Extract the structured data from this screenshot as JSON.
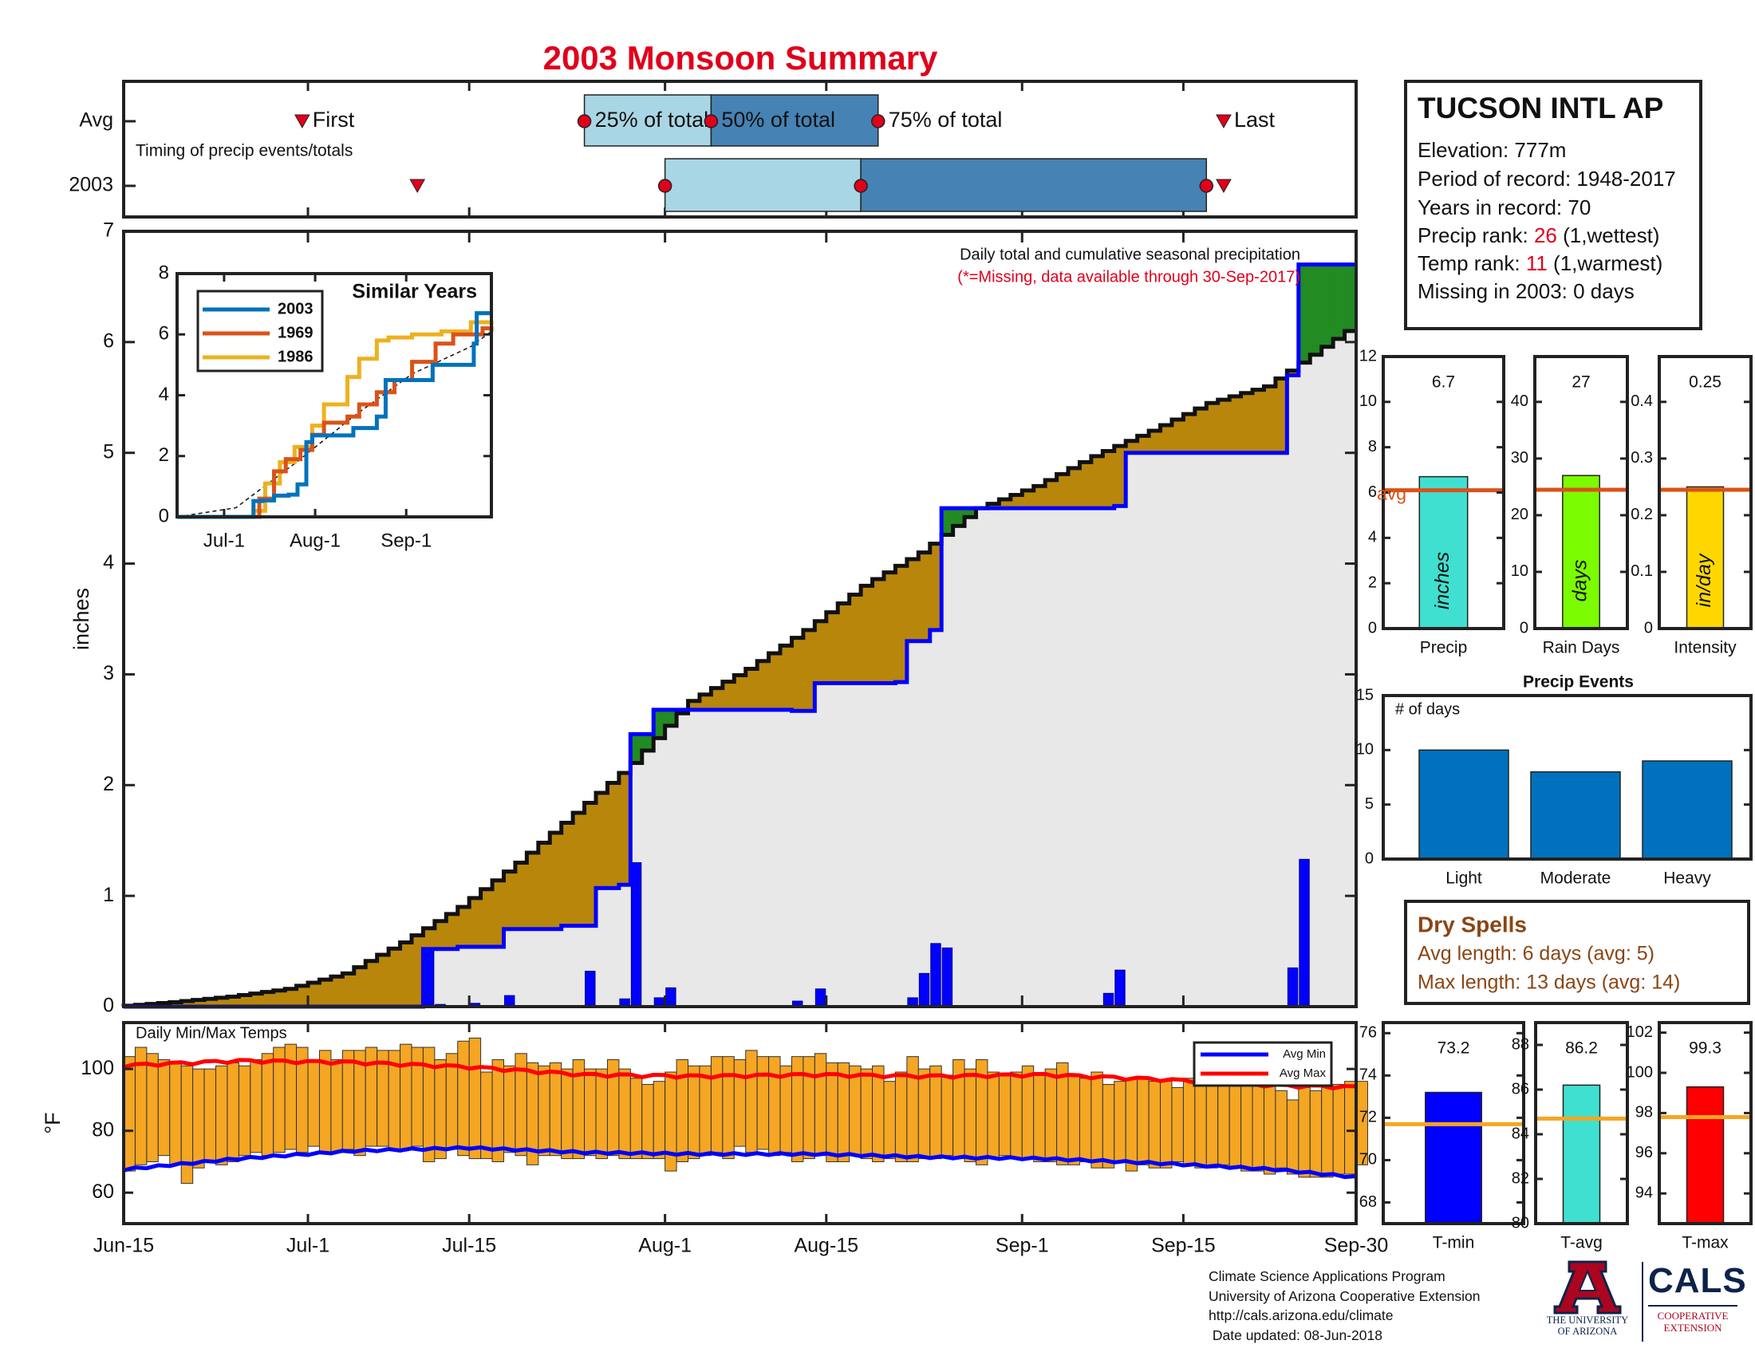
{
  "title": "2003 Monsoon Summary",
  "colors": {
    "title": "#e0001b",
    "red": "#e0001b",
    "brown": "#8b4513",
    "precipFill": "#b8860b",
    "greenFill": "#228b22",
    "gray": "#e8e8e8",
    "blue": "#0000ff",
    "orange": "#f5a623",
    "lightblue": "#a9d6e5",
    "steelblue": "#4682b4",
    "avgLine": "#d95319"
  },
  "timing": {
    "label": "Timing of precip events/totals",
    "rows": [
      "Avg",
      "2003"
    ],
    "markers": {
      "first": "First",
      "p25": "25% of total",
      "p50": "50% of total",
      "p75": "75% of total",
      "last": "Last"
    },
    "avg_days": {
      "first": 15.5,
      "p25": 40,
      "p50": 51,
      "p75": 65.5,
      "last": 95.5
    },
    "y2003_days": {
      "first": 25.5,
      "p25": 47,
      "p50": 64,
      "p75": 94,
      "last": 95.5
    }
  },
  "info": {
    "station": "TUCSON INTL AP",
    "elevation": "Elevation: 777m",
    "period": "Period of record: 1948-2017",
    "years": "Years in record: 70",
    "precip_rank_pre": "Precip rank: ",
    "precip_rank_val": "26",
    "precip_rank_post": " (1,wettest)",
    "temp_rank_pre": "Temp rank: ",
    "temp_rank_val": "11",
    "temp_rank_post": " (1,warmest)",
    "missing": "Missing in 2003: 0 days"
  },
  "main_chart": {
    "annotation1": "Daily total and cumulative seasonal precipitation",
    "annotation2": "(*=Missing, data available through 30-Sep-2017)",
    "ylabel": "inches",
    "yticks": [
      0,
      1,
      2,
      3,
      4,
      5,
      6,
      7
    ],
    "xticks": [
      "Jun-15",
      "Jul-1",
      "Jul-15",
      "Aug-1",
      "Aug-15",
      "Sep-1",
      "Sep-15",
      "Sep-30"
    ],
    "xtick_days": [
      0,
      16,
      30,
      47,
      61,
      78,
      92,
      107
    ]
  },
  "inset": {
    "title": "Similar Years",
    "legend": [
      "2003",
      "1969",
      "1986"
    ],
    "xticks": [
      "Jul-1",
      "Aug-1",
      "Sep-1"
    ],
    "yticks": [
      0,
      2,
      4,
      6,
      8
    ]
  },
  "temps": {
    "label": "Daily Min/Max Temps",
    "ylabel": "°F",
    "yticks": [
      60,
      80,
      100
    ],
    "legend": [
      "Avg Min",
      "Avg Max"
    ]
  },
  "small_bars": [
    {
      "name": "Precip",
      "value": "6.7",
      "unit": "inches",
      "avgLabel": "avg",
      "yticks": [
        0,
        2,
        4,
        6,
        8,
        10,
        12
      ]
    },
    {
      "name": "Rain Days",
      "value": "27",
      "unit": "days",
      "yticks": [
        0,
        10,
        20,
        30,
        40
      ]
    },
    {
      "name": "Intensity",
      "value": "0.25",
      "unit": "in/day",
      "yticks": [
        0,
        0.1,
        0.2,
        0.3,
        0.4
      ]
    }
  ],
  "events": {
    "title": "Precip Events",
    "label": "# of days",
    "yticks": [
      0,
      5,
      10,
      15
    ],
    "categories": [
      "Light",
      "Moderate",
      "Heavy"
    ]
  },
  "dry_spells": {
    "title": "Dry Spells",
    "avg": "Avg length: 6 days (avg: 5)",
    "max": "Max length: 13 days (avg: 14)"
  },
  "temp_bars": [
    {
      "name": "T-min",
      "value": "73.2",
      "yticks": [
        68,
        70,
        72,
        74,
        76
      ]
    },
    {
      "name": "T-avg",
      "value": "86.2",
      "yticks": [
        80,
        82,
        84,
        86,
        88
      ]
    },
    {
      "name": "T-max",
      "value": "99.3",
      "yticks": [
        94,
        96,
        98,
        100,
        102
      ]
    }
  ],
  "footer": {
    "line1": "Climate Science Applications Program",
    "line2": "University of Arizona Cooperative Extension",
    "line3": "http://cals.arizona.edu/climate",
    "line4": " Date updated: 08-Jun-2018",
    "ua1": "THE UNIVERSITY",
    "ua2": "OF ARIZONA",
    "cals": "CALS",
    "cals_sub1": "COOPERATIVE",
    "cals_sub2": "EXTENSION"
  },
  "chart_data": [
    {
      "type": "area",
      "title": "Daily total and cumulative seasonal precipitation",
      "ylabel": "inches",
      "ylim": [
        0,
        7
      ],
      "x_range": [
        "Jun-15",
        "Sep-30"
      ],
      "avg_cumulative": {
        "days": [
          0,
          5,
          10,
          15,
          20,
          25,
          30,
          35,
          40,
          45,
          50,
          55,
          60,
          65,
          70,
          75,
          80,
          85,
          90,
          95,
          100,
          107
        ],
        "values": [
          0,
          0.04,
          0.09,
          0.16,
          0.3,
          0.58,
          0.9,
          1.3,
          1.75,
          2.2,
          2.76,
          3.05,
          3.4,
          3.8,
          4.1,
          4.5,
          4.7,
          4.97,
          5.2,
          5.45,
          5.6,
          6.1
        ]
      },
      "cumulative_2003": {
        "steps": [
          [
            0,
            0
          ],
          [
            26,
            0.52
          ],
          [
            29,
            0.54
          ],
          [
            33,
            0.7
          ],
          [
            38,
            0.73
          ],
          [
            41,
            1.07
          ],
          [
            43,
            1.1
          ],
          [
            44,
            2.46
          ],
          [
            46,
            2.68
          ],
          [
            58,
            2.67
          ],
          [
            60,
            2.92
          ],
          [
            67,
            2.93
          ],
          [
            68,
            3.3
          ],
          [
            70,
            3.4
          ],
          [
            71,
            4.5
          ],
          [
            78,
            4.5
          ],
          [
            86,
            4.52
          ],
          [
            87,
            5.0
          ],
          [
            100,
            5.0
          ],
          [
            101,
            5.7
          ],
          [
            102,
            6.7
          ],
          [
            107,
            6.7
          ]
        ]
      },
      "daily_2003": {
        "days": [
          26,
          27,
          30,
          33,
          40,
          43,
          44,
          46,
          47,
          58,
          60,
          68,
          69,
          70,
          71,
          85,
          86,
          101,
          102
        ],
        "values": [
          0.52,
          0.02,
          0.03,
          0.1,
          0.32,
          0.07,
          1.3,
          0.08,
          0.17,
          0.05,
          0.16,
          0.08,
          0.3,
          0.57,
          0.53,
          0.12,
          0.33,
          0.35,
          1.33
        ]
      }
    },
    {
      "type": "line",
      "title": "Similar Years",
      "x_range": [
        "Jun-15",
        "Sep-30"
      ],
      "ylim": [
        0,
        8
      ],
      "series": [
        {
          "name": "2003",
          "steps": [
            [
              0,
              0
            ],
            [
              26,
              0.52
            ],
            [
              29,
              0.54
            ],
            [
              33,
              0.7
            ],
            [
              38,
              0.73
            ],
            [
              41,
              1.07
            ],
            [
              44,
              2.46
            ],
            [
              46,
              2.68
            ],
            [
              60,
              2.92
            ],
            [
              68,
              3.3
            ],
            [
              71,
              4.5
            ],
            [
              87,
              5.0
            ],
            [
              101,
              5.7
            ],
            [
              102,
              6.7
            ],
            [
              107,
              6.7
            ]
          ]
        },
        {
          "name": "1969",
          "steps": [
            [
              0,
              0
            ],
            [
              28,
              0.6
            ],
            [
              33,
              1.5
            ],
            [
              37,
              1.9
            ],
            [
              42,
              2.2
            ],
            [
              46,
              2.7
            ],
            [
              50,
              3.1
            ],
            [
              58,
              3.3
            ],
            [
              62,
              3.7
            ],
            [
              68,
              4.1
            ],
            [
              74,
              4.5
            ],
            [
              80,
              5.1
            ],
            [
              88,
              5.7
            ],
            [
              94,
              6.0
            ],
            [
              104,
              6.2
            ],
            [
              107,
              6.1
            ]
          ]
        },
        {
          "name": "1986",
          "steps": [
            [
              0,
              0
            ],
            [
              26,
              0.2
            ],
            [
              30,
              1.1
            ],
            [
              35,
              1.8
            ],
            [
              40,
              2.3
            ],
            [
              46,
              3.0
            ],
            [
              50,
              3.7
            ],
            [
              58,
              4.6
            ],
            [
              62,
              5.2
            ],
            [
              68,
              5.8
            ],
            [
              72,
              5.9
            ],
            [
              80,
              6.0
            ],
            [
              90,
              6.1
            ],
            [
              100,
              6.4
            ],
            [
              107,
              6.3
            ]
          ]
        }
      ],
      "avg_dashed": {
        "days": [
          0,
          20,
          40,
          60,
          80,
          100,
          107
        ],
        "values": [
          0,
          0.3,
          1.75,
          3.3,
          4.7,
          5.6,
          6.1
        ]
      }
    },
    {
      "type": "bar",
      "title": "Daily Min/Max Temps",
      "ylabel": "°F",
      "ylim": [
        50,
        115
      ],
      "days": [
        0,
        1,
        2,
        3,
        4,
        5,
        6,
        7,
        8,
        9,
        10,
        11,
        12,
        13,
        14,
        15,
        16,
        17,
        18,
        19,
        20,
        21,
        22,
        23,
        24,
        25,
        26,
        27,
        28,
        29,
        30,
        31,
        32,
        33,
        34,
        35,
        36,
        37,
        38,
        39,
        40,
        41,
        42,
        43,
        44,
        45,
        46,
        47,
        48,
        49,
        50,
        51,
        52,
        53,
        54,
        55,
        56,
        57,
        58,
        59,
        60,
        61,
        62,
        63,
        64,
        65,
        66,
        67,
        68,
        69,
        70,
        71,
        72,
        73,
        74,
        75,
        76,
        77,
        78,
        79,
        80,
        81,
        82,
        83,
        84,
        85,
        86,
        87,
        88,
        89,
        90,
        91,
        92,
        93,
        94,
        95,
        96,
        97,
        98,
        99,
        100,
        101,
        102,
        103,
        104,
        105,
        106,
        107
      ],
      "tmin": [
        67,
        69,
        70,
        72,
        69,
        63,
        68,
        70,
        69,
        70,
        72,
        73,
        72,
        73,
        74,
        73,
        75,
        73,
        73,
        74,
        72,
        75,
        75,
        74,
        74,
        75,
        70,
        71,
        74,
        72,
        71,
        71,
        70,
        73,
        72,
        69,
        72,
        72,
        71,
        71,
        72,
        71,
        72,
        71,
        71,
        71,
        71,
        67,
        70,
        71,
        72,
        73,
        71,
        75,
        73,
        74,
        72,
        73,
        70,
        71,
        72,
        70,
        70,
        72,
        71,
        70,
        71,
        70,
        70,
        71,
        71,
        72,
        71,
        70,
        69,
        71,
        72,
        71,
        71,
        70,
        70,
        69,
        69,
        70,
        68,
        68,
        70,
        67,
        69,
        68,
        68,
        70,
        69,
        68,
        68,
        69,
        68,
        67,
        67,
        66,
        68,
        66,
        65,
        65,
        65,
        66,
        66,
        69
      ],
      "tmax": [
        104,
        107,
        105,
        103,
        102,
        101,
        100,
        100,
        101,
        102,
        101,
        103,
        105,
        107,
        108,
        107,
        103,
        106,
        103,
        106,
        106,
        107,
        106,
        106,
        108,
        107,
        107,
        103,
        105,
        109,
        110,
        99,
        103,
        101,
        105,
        102,
        101,
        102,
        100,
        103,
        100,
        100,
        103,
        100,
        97,
        95,
        96,
        99,
        103,
        101,
        101,
        104,
        104,
        103,
        106,
        104,
        104,
        101,
        104,
        104,
        105,
        102,
        102,
        101,
        100,
        101,
        96,
        99,
        104,
        100,
        101,
        98,
        103,
        100,
        103,
        99,
        98,
        99,
        101,
        98,
        100,
        102,
        98,
        97,
        99,
        95,
        96,
        97,
        97,
        96,
        96,
        94,
        97,
        95,
        95,
        97,
        96,
        98,
        99,
        98,
        93,
        90,
        94,
        93,
        94,
        95,
        96,
        96
      ],
      "avg_min_line": {
        "days": [
          0,
          10,
          20,
          30,
          40,
          50,
          60,
          70,
          80,
          90,
          100,
          107
        ],
        "values": [
          67.5,
          71,
          73.5,
          74.5,
          73,
          72.5,
          72.5,
          71.5,
          71,
          69.5,
          67.5,
          65
        ]
      },
      "avg_max_line": {
        "days": [
          0,
          10,
          20,
          30,
          40,
          50,
          60,
          70,
          80,
          90,
          100,
          107
        ],
        "values": [
          101,
          102.5,
          102,
          100.5,
          98,
          97.5,
          98,
          97.5,
          98,
          96.5,
          94.5,
          94
        ]
      }
    },
    {
      "type": "bar",
      "title": "Precip",
      "categories": [
        "Precip"
      ],
      "values": [
        6.7
      ],
      "avg": 6.1,
      "ylim": [
        0,
        12
      ]
    },
    {
      "type": "bar",
      "title": "Rain Days",
      "categories": [
        "Rain Days"
      ],
      "values": [
        27
      ],
      "avg": 24.5,
      "ylim": [
        0,
        48
      ]
    },
    {
      "type": "bar",
      "title": "Intensity",
      "categories": [
        "Intensity"
      ],
      "values": [
        0.25
      ],
      "avg": 0.245,
      "ylim": [
        0,
        0.48
      ]
    },
    {
      "type": "bar",
      "title": "Precip Events",
      "categories": [
        "Light",
        "Moderate",
        "Heavy"
      ],
      "values": [
        10,
        8,
        9
      ],
      "ylim": [
        0,
        15
      ]
    },
    {
      "type": "bar",
      "title": "T-min",
      "categories": [
        "T-min"
      ],
      "values": [
        73.2
      ],
      "avg": 71.7,
      "ylim": [
        67,
        76.5
      ]
    },
    {
      "type": "bar",
      "title": "T-avg",
      "categories": [
        "T-avg"
      ],
      "values": [
        86.2
      ],
      "avg": 84.7,
      "ylim": [
        80,
        89
      ]
    },
    {
      "type": "bar",
      "title": "T-max",
      "categories": [
        "T-max"
      ],
      "values": [
        99.3
      ],
      "avg": 97.8,
      "ylim": [
        92.5,
        102.5
      ]
    }
  ]
}
